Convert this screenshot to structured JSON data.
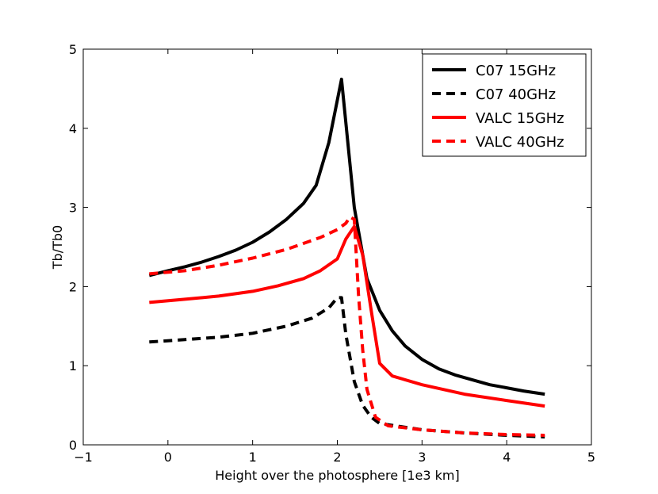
{
  "chart_data": {
    "type": "line",
    "title": "",
    "xlabel": "Height over the photosphere [1e3 km]",
    "ylabel": "Tb/Tb0",
    "xlim": [
      -1,
      5
    ],
    "ylim": [
      0,
      5
    ],
    "grid": false,
    "xticks": [
      -1,
      0,
      1,
      2,
      3,
      4,
      5
    ],
    "xtick_labels": [
      "−1",
      "0",
      "1",
      "2",
      "3",
      "4",
      "5"
    ],
    "yticks": [
      0,
      1,
      2,
      3,
      4,
      5
    ],
    "ytick_labels": [
      "0",
      "1",
      "2",
      "3",
      "4",
      "5"
    ],
    "legend_position": "top-right",
    "series": [
      {
        "name": "C07 15GHz",
        "color": "#000000",
        "style": "solid",
        "x": [
          -0.22,
          0.0,
          0.2,
          0.4,
          0.6,
          0.8,
          1.0,
          1.2,
          1.4,
          1.6,
          1.75,
          1.9,
          2.05,
          2.2,
          2.35,
          2.5,
          2.65,
          2.8,
          3.0,
          3.2,
          3.4,
          3.6,
          3.8,
          4.0,
          4.2,
          4.45
        ],
        "y": [
          2.14,
          2.2,
          2.25,
          2.31,
          2.38,
          2.46,
          2.56,
          2.69,
          2.85,
          3.05,
          3.28,
          3.82,
          4.62,
          3.0,
          2.1,
          1.7,
          1.44,
          1.25,
          1.08,
          0.96,
          0.88,
          0.82,
          0.76,
          0.72,
          0.68,
          0.64
        ]
      },
      {
        "name": "C07 40GHz",
        "color": "#000000",
        "style": "dashed",
        "x": [
          -0.22,
          0.2,
          0.6,
          1.0,
          1.4,
          1.7,
          1.9,
          2.0,
          2.05,
          2.1,
          2.2,
          2.3,
          2.4,
          2.5,
          3.0,
          3.5,
          4.0,
          4.45
        ],
        "y": [
          1.3,
          1.33,
          1.36,
          1.41,
          1.5,
          1.6,
          1.73,
          1.86,
          1.86,
          1.4,
          0.8,
          0.5,
          0.35,
          0.27,
          0.19,
          0.15,
          0.12,
          0.1
        ]
      },
      {
        "name": "VALC 15GHz",
        "color": "#ff0000",
        "style": "solid",
        "x": [
          -0.22,
          0.2,
          0.6,
          1.0,
          1.3,
          1.6,
          1.8,
          2.0,
          2.1,
          2.2,
          2.3,
          2.4,
          2.5,
          2.65,
          3.0,
          3.5,
          4.0,
          4.45
        ],
        "y": [
          1.8,
          1.84,
          1.88,
          1.94,
          2.01,
          2.1,
          2.2,
          2.35,
          2.6,
          2.76,
          2.4,
          1.7,
          1.03,
          0.87,
          0.76,
          0.64,
          0.56,
          0.49
        ]
      },
      {
        "name": "VALC 40GHz",
        "color": "#ff0000",
        "style": "dashed",
        "x": [
          -0.22,
          0.2,
          0.6,
          1.0,
          1.4,
          1.8,
          2.0,
          2.1,
          2.15,
          2.2,
          2.25,
          2.3,
          2.35,
          2.45,
          2.6,
          3.0,
          3.5,
          4.0,
          4.45
        ],
        "y": [
          2.16,
          2.2,
          2.27,
          2.36,
          2.47,
          2.62,
          2.72,
          2.8,
          2.88,
          2.85,
          1.9,
          1.2,
          0.7,
          0.35,
          0.24,
          0.19,
          0.15,
          0.13,
          0.12
        ]
      }
    ]
  }
}
